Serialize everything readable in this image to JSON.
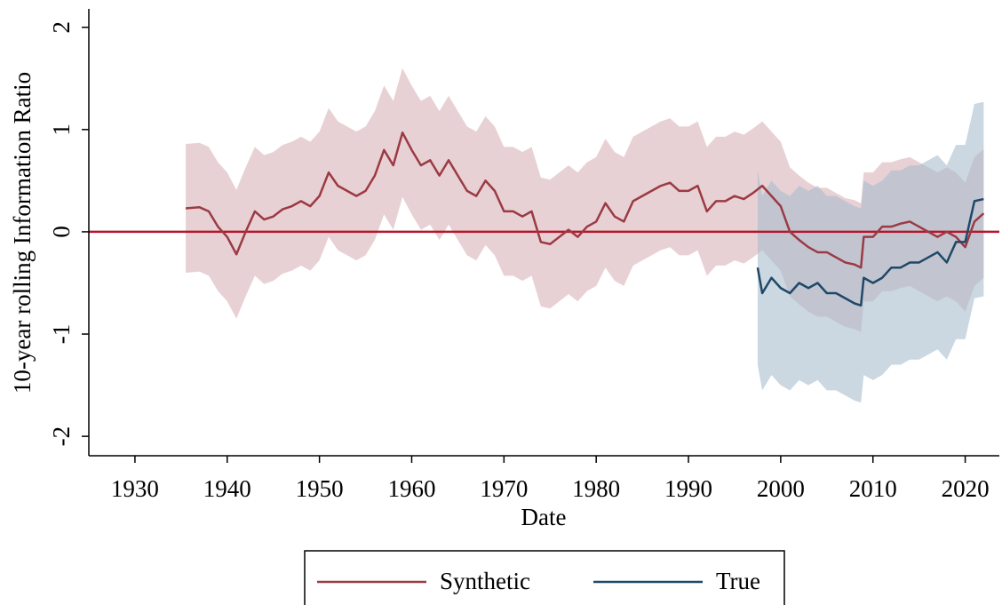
{
  "chart_data": {
    "type": "line",
    "x_label": "Date",
    "y_label": "10-year rolling Information Ratio",
    "xlim": [
      1925,
      2023.7
    ],
    "xticks": [
      1930,
      1940,
      1950,
      1960,
      1970,
      1980,
      1990,
      2000,
      2010,
      2020
    ],
    "ylim": [
      -2.19,
      2.18
    ],
    "yticks": [
      -2,
      -1,
      0,
      1,
      2
    ],
    "reference_line": {
      "value": 0,
      "color": "#b5162b"
    },
    "legend": "bottom",
    "series": [
      {
        "name": "Synthetic",
        "color": "#9b3a44",
        "band_color": "#d8b3b8",
        "x": [
          1935.5,
          1937,
          1938,
          1939,
          1940,
          1941,
          1942,
          1943,
          1944,
          1945,
          1946,
          1947,
          1948,
          1949,
          1950,
          1951,
          1952,
          1953,
          1954,
          1955,
          1956,
          1957,
          1958,
          1959,
          1960,
          1961,
          1962,
          1963,
          1964,
          1965,
          1966,
          1967,
          1968,
          1969,
          1970,
          1971,
          1972,
          1973,
          1974,
          1975,
          1976,
          1977,
          1978,
          1979,
          1980,
          1981,
          1982,
          1983,
          1984,
          1985,
          1986,
          1987,
          1988,
          1989,
          1990,
          1991,
          1992,
          1993,
          1994,
          1995,
          1996,
          1997,
          1998,
          1999,
          2000,
          2001,
          2002,
          2003,
          2004,
          2005,
          2006,
          2007,
          2008,
          2008.7,
          2009,
          2010,
          2011,
          2012,
          2013,
          2014,
          2015,
          2016,
          2017,
          2018,
          2019,
          2020,
          2021,
          2022
        ],
        "values": [
          0.23,
          0.24,
          0.2,
          0.05,
          -0.05,
          -0.22,
          0.0,
          0.2,
          0.12,
          0.15,
          0.22,
          0.25,
          0.3,
          0.25,
          0.35,
          0.58,
          0.45,
          0.4,
          0.35,
          0.4,
          0.55,
          0.8,
          0.65,
          0.97,
          0.8,
          0.65,
          0.7,
          0.55,
          0.7,
          0.55,
          0.4,
          0.35,
          0.5,
          0.4,
          0.2,
          0.2,
          0.15,
          0.2,
          -0.1,
          -0.12,
          -0.05,
          0.02,
          -0.05,
          0.05,
          0.1,
          0.28,
          0.15,
          0.1,
          0.3,
          0.35,
          0.4,
          0.45,
          0.48,
          0.4,
          0.4,
          0.45,
          0.2,
          0.3,
          0.3,
          0.35,
          0.32,
          0.38,
          0.45,
          0.35,
          0.25,
          0.0,
          -0.08,
          -0.15,
          -0.2,
          -0.2,
          -0.25,
          -0.3,
          -0.32,
          -0.35,
          -0.05,
          -0.05,
          0.05,
          0.05,
          0.08,
          0.1,
          0.05,
          0.0,
          -0.05,
          0.0,
          -0.05,
          -0.15,
          0.1,
          0.18
        ],
        "upper": [
          0.86,
          0.87,
          0.83,
          0.68,
          0.58,
          0.41,
          0.63,
          0.83,
          0.75,
          0.78,
          0.85,
          0.88,
          0.93,
          0.88,
          0.98,
          1.21,
          1.08,
          1.03,
          0.98,
          1.03,
          1.18,
          1.43,
          1.28,
          1.6,
          1.43,
          1.28,
          1.33,
          1.18,
          1.33,
          1.18,
          1.03,
          0.98,
          1.13,
          1.03,
          0.83,
          0.83,
          0.78,
          0.83,
          0.53,
          0.51,
          0.58,
          0.65,
          0.58,
          0.68,
          0.73,
          0.91,
          0.78,
          0.73,
          0.93,
          0.98,
          1.03,
          1.08,
          1.11,
          1.03,
          1.03,
          1.08,
          0.83,
          0.93,
          0.93,
          0.98,
          0.95,
          1.01,
          1.08,
          0.98,
          0.88,
          0.63,
          0.55,
          0.48,
          0.43,
          0.43,
          0.38,
          0.33,
          0.31,
          0.28,
          0.58,
          0.58,
          0.68,
          0.68,
          0.71,
          0.73,
          0.68,
          0.63,
          0.58,
          0.63,
          0.58,
          0.48,
          0.73,
          0.81
        ],
        "lower": [
          -0.4,
          -0.39,
          -0.43,
          -0.58,
          -0.68,
          -0.85,
          -0.63,
          -0.43,
          -0.51,
          -0.48,
          -0.41,
          -0.38,
          -0.33,
          -0.38,
          -0.28,
          -0.05,
          -0.18,
          -0.23,
          -0.28,
          -0.23,
          -0.08,
          0.17,
          0.02,
          0.34,
          0.17,
          0.02,
          0.07,
          -0.08,
          0.07,
          -0.08,
          -0.23,
          -0.28,
          -0.13,
          -0.23,
          -0.43,
          -0.43,
          -0.48,
          -0.43,
          -0.73,
          -0.75,
          -0.68,
          -0.61,
          -0.68,
          -0.58,
          -0.53,
          -0.35,
          -0.48,
          -0.53,
          -0.33,
          -0.28,
          -0.23,
          -0.18,
          -0.15,
          -0.23,
          -0.23,
          -0.18,
          -0.43,
          -0.33,
          -0.33,
          -0.28,
          -0.31,
          -0.25,
          -0.18,
          -0.28,
          -0.38,
          -0.63,
          -0.71,
          -0.78,
          -0.83,
          -0.83,
          -0.88,
          -0.93,
          -0.95,
          -0.98,
          -0.68,
          -0.68,
          -0.58,
          -0.58,
          -0.55,
          -0.53,
          -0.58,
          -0.63,
          -0.68,
          -0.63,
          -0.68,
          -0.78,
          -0.53,
          -0.45
        ]
      },
      {
        "name": "True",
        "color": "#1f4868",
        "band_color": "#a9bccd",
        "x": [
          1997.5,
          1998,
          1999,
          2000,
          2001,
          2002,
          2003,
          2004,
          2005,
          2006,
          2007,
          2008,
          2008.7,
          2009,
          2010,
          2011,
          2012,
          2013,
          2014,
          2015,
          2016,
          2017,
          2018,
          2019,
          2020,
          2021,
          2022
        ],
        "values": [
          -0.35,
          -0.6,
          -0.45,
          -0.55,
          -0.6,
          -0.5,
          -0.55,
          -0.5,
          -0.6,
          -0.6,
          -0.65,
          -0.7,
          -0.72,
          -0.45,
          -0.5,
          -0.45,
          -0.35,
          -0.35,
          -0.3,
          -0.3,
          -0.25,
          -0.2,
          -0.3,
          -0.1,
          -0.1,
          0.3,
          0.32
        ],
        "upper": [
          0.6,
          0.35,
          0.5,
          0.4,
          0.35,
          0.45,
          0.4,
          0.45,
          0.35,
          0.35,
          0.3,
          0.25,
          0.23,
          0.5,
          0.45,
          0.5,
          0.6,
          0.6,
          0.65,
          0.65,
          0.7,
          0.75,
          0.65,
          0.85,
          0.85,
          1.25,
          1.27
        ],
        "lower": [
          -1.3,
          -1.55,
          -1.4,
          -1.5,
          -1.55,
          -1.45,
          -1.5,
          -1.45,
          -1.55,
          -1.55,
          -1.6,
          -1.65,
          -1.67,
          -1.4,
          -1.45,
          -1.4,
          -1.3,
          -1.3,
          -1.25,
          -1.25,
          -1.2,
          -1.15,
          -1.25,
          -1.05,
          -1.05,
          -0.65,
          -0.63
        ]
      }
    ]
  }
}
